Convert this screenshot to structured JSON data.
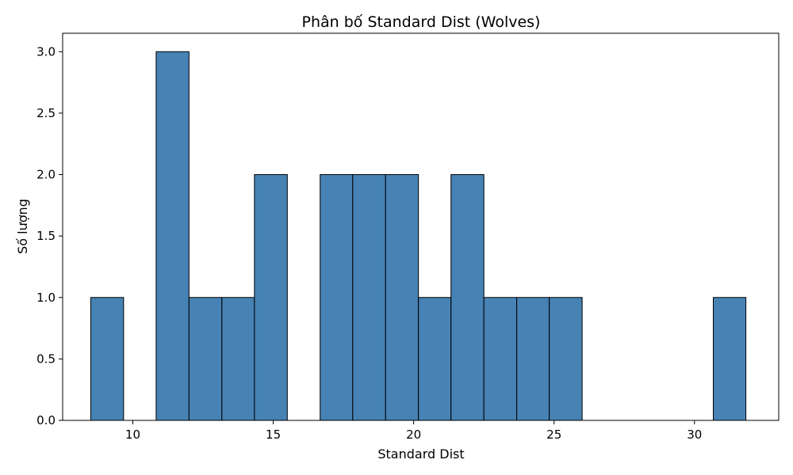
{
  "chart_data": {
    "type": "bar",
    "subtype": "histogram",
    "title": "Phân bố Standard Dist (Wolves)",
    "xlabel": "Standard Dist",
    "ylabel": "Số lượng",
    "xlim": [
      7.5,
      33.0
    ],
    "ylim": [
      0,
      3.15
    ],
    "bar_color": "#4682b4",
    "edge_color": "#000000",
    "grid": false,
    "x_ticks": [
      "10",
      "15",
      "20",
      "25",
      "30"
    ],
    "y_ticks": [
      "0.0",
      "0.5",
      "1.0",
      "1.5",
      "2.0",
      "2.5",
      "3.0"
    ],
    "bins": [
      {
        "x0": 8.5,
        "x1": 9.67,
        "count": 1
      },
      {
        "x0": 9.67,
        "x1": 10.83,
        "count": 0
      },
      {
        "x0": 10.83,
        "x1": 12.0,
        "count": 3
      },
      {
        "x0": 12.0,
        "x1": 13.17,
        "count": 1
      },
      {
        "x0": 13.17,
        "x1": 14.33,
        "count": 1
      },
      {
        "x0": 14.33,
        "x1": 15.5,
        "count": 2
      },
      {
        "x0": 15.5,
        "x1": 16.67,
        "count": 0
      },
      {
        "x0": 16.67,
        "x1": 17.83,
        "count": 2
      },
      {
        "x0": 17.83,
        "x1": 19.0,
        "count": 2
      },
      {
        "x0": 19.0,
        "x1": 20.17,
        "count": 2
      },
      {
        "x0": 20.17,
        "x1": 21.33,
        "count": 1
      },
      {
        "x0": 21.33,
        "x1": 22.5,
        "count": 2
      },
      {
        "x0": 22.5,
        "x1": 23.67,
        "count": 1
      },
      {
        "x0": 23.67,
        "x1": 24.83,
        "count": 1
      },
      {
        "x0": 24.83,
        "x1": 26.0,
        "count": 1
      },
      {
        "x0": 26.0,
        "x1": 27.17,
        "count": 0
      },
      {
        "x0": 27.17,
        "x1": 28.33,
        "count": 0
      },
      {
        "x0": 28.33,
        "x1": 29.5,
        "count": 0
      },
      {
        "x0": 29.5,
        "x1": 30.67,
        "count": 0
      },
      {
        "x0": 30.67,
        "x1": 31.83,
        "count": 1
      }
    ]
  }
}
